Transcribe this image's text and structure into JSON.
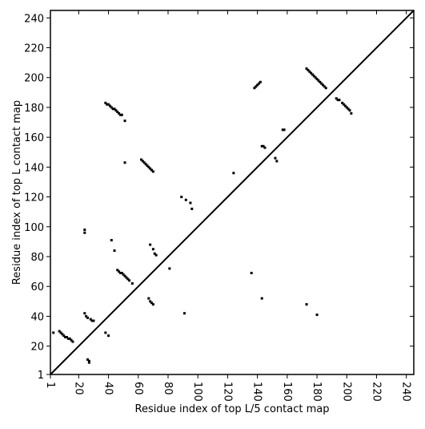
{
  "chart_data": {
    "type": "scatter",
    "xlabel": "Residue index of top L/5 contact map",
    "ylabel": "Residue index of top L contact map",
    "xlim": [
      1,
      245
    ],
    "ylim": [
      1,
      245
    ],
    "xticks": [
      1,
      20,
      40,
      60,
      80,
      100,
      120,
      140,
      160,
      180,
      200,
      220,
      240
    ],
    "yticks": [
      1,
      20,
      40,
      60,
      80,
      100,
      120,
      140,
      160,
      180,
      200,
      220,
      240
    ],
    "diagonal": true,
    "series": [
      {
        "color": "#000000",
        "x": [
          38,
          39,
          40,
          41,
          42,
          43,
          44,
          45,
          46,
          47,
          48,
          49,
          51,
          51,
          62,
          63,
          64,
          65,
          66,
          67,
          68,
          69,
          70,
          89,
          92,
          95,
          96,
          124,
          138,
          139,
          140,
          141,
          142,
          143,
          144,
          145,
          152,
          153,
          157,
          158,
          173,
          174,
          175,
          176,
          177,
          178,
          179,
          180,
          181,
          182,
          183,
          184,
          185,
          186,
          193,
          194,
          195,
          197,
          198,
          199,
          200,
          201,
          202,
          203,
          3,
          7,
          8,
          9,
          10,
          11,
          12,
          13,
          14,
          15,
          16,
          24,
          25,
          26,
          28,
          29,
          30,
          24,
          24,
          26,
          27,
          27,
          38,
          40,
          42,
          44,
          46,
          47,
          48,
          49,
          50,
          51,
          52,
          53,
          54,
          56,
          67,
          68,
          69,
          70,
          68,
          70,
          71,
          72,
          81,
          91,
          136,
          143,
          173,
          180
        ],
        "y": [
          183,
          182,
          182,
          181,
          180,
          179,
          179,
          178,
          177,
          176,
          175,
          175,
          171,
          143,
          145,
          144,
          143,
          142,
          141,
          140,
          139,
          138,
          137,
          120,
          118,
          116,
          112,
          136,
          193,
          194,
          195,
          196,
          197,
          154,
          154,
          153,
          146,
          144,
          165,
          165,
          206,
          205,
          204,
          203,
          202,
          201,
          200,
          199,
          198,
          197,
          196,
          195,
          194,
          193,
          186,
          185,
          185,
          183,
          182,
          181,
          180,
          179,
          178,
          176,
          29,
          30,
          29,
          28,
          27,
          26,
          26,
          25,
          25,
          24,
          23,
          42,
          40,
          39,
          38,
          37,
          37,
          98,
          96,
          11,
          10,
          9,
          29,
          27,
          91,
          84,
          71,
          70,
          69,
          69,
          68,
          67,
          66,
          65,
          64,
          62,
          52,
          50,
          49,
          48,
          88,
          85,
          82,
          81,
          72,
          42,
          69,
          52,
          48,
          41
        ]
      }
    ]
  }
}
